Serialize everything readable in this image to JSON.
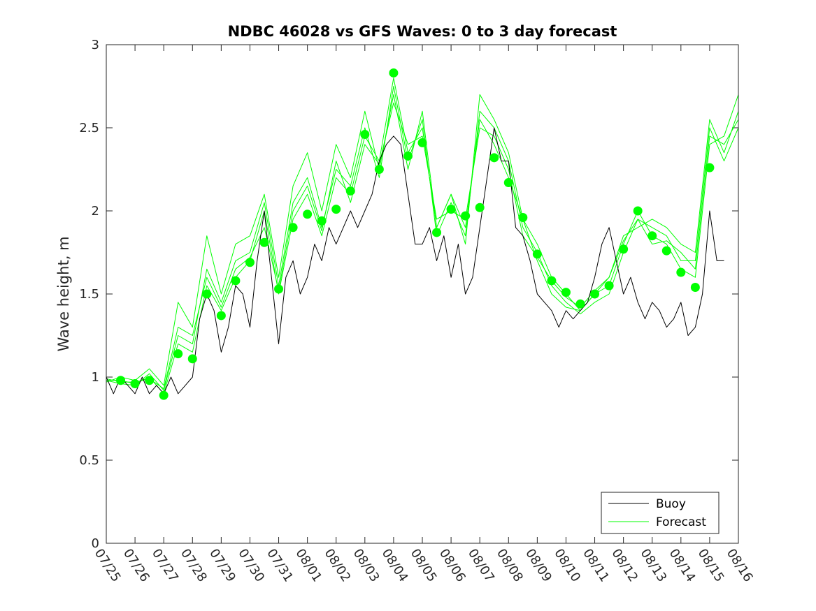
{
  "chart_data": {
    "type": "line",
    "title": "NDBC 46028 vs GFS Waves: 0 to 3 day forecast",
    "xlabel": "",
    "ylabel": "Wave height, m",
    "xlim": [
      0,
      22
    ],
    "ylim": [
      0,
      3
    ],
    "yticks": [
      "0",
      "0.5",
      "1",
      "1.5",
      "2",
      "2.5",
      "3"
    ],
    "ytick_values": [
      0,
      0.5,
      1,
      1.5,
      2,
      2.5,
      3
    ],
    "xticks": [
      "07/25",
      "07/26",
      "07/27",
      "07/28",
      "07/29",
      "07/30",
      "07/31",
      "08/01",
      "08/02",
      "08/03",
      "08/04",
      "08/05",
      "08/06",
      "08/07",
      "08/08",
      "08/09",
      "08/10",
      "08/11",
      "08/12",
      "08/13",
      "08/14",
      "08/15",
      "08/16"
    ],
    "legend": {
      "position": "bottom-right",
      "entries": [
        "Buoy",
        "Forecast"
      ]
    },
    "colors": {
      "buoy": "#000000",
      "forecast": "#00ff00",
      "axis": "#262626"
    },
    "series": [
      {
        "name": "Buoy",
        "x": [
          0.0,
          0.25,
          0.5,
          0.75,
          1.0,
          1.25,
          1.5,
          1.75,
          2.0,
          2.25,
          2.5,
          2.75,
          3.0,
          3.25,
          3.5,
          3.75,
          4.0,
          4.25,
          4.5,
          4.75,
          5.0,
          5.25,
          5.5,
          5.75,
          6.0,
          6.25,
          6.5,
          6.75,
          7.0,
          7.25,
          7.5,
          7.75,
          8.0,
          8.25,
          8.5,
          8.75,
          9.0,
          9.25,
          9.5,
          9.75,
          10.0,
          10.25,
          10.5,
          10.75,
          11.0,
          11.25,
          11.5,
          11.75,
          12.0,
          12.25,
          12.5,
          12.75,
          13.0,
          13.25,
          13.5,
          13.75,
          14.0,
          14.25,
          14.5,
          14.75,
          15.0,
          15.25,
          15.5,
          15.75,
          16.0,
          16.25,
          16.5,
          16.75,
          17.0,
          17.25,
          17.5,
          17.75,
          18.0,
          18.25,
          18.5,
          18.75,
          19.0,
          19.25,
          19.5,
          19.75,
          20.0,
          20.25,
          20.5,
          20.75,
          21.0,
          21.25,
          21.5
        ],
        "values": [
          1.0,
          0.9,
          1.0,
          0.95,
          0.9,
          1.0,
          0.9,
          0.95,
          0.9,
          1.0,
          0.9,
          0.95,
          1.0,
          1.35,
          1.5,
          1.4,
          1.15,
          1.3,
          1.55,
          1.5,
          1.3,
          1.7,
          2.0,
          1.6,
          1.2,
          1.6,
          1.7,
          1.5,
          1.6,
          1.8,
          1.7,
          1.9,
          1.8,
          1.9,
          2.0,
          1.9,
          2.0,
          2.1,
          2.3,
          2.4,
          2.45,
          2.4,
          2.1,
          1.8,
          1.8,
          1.9,
          1.7,
          1.85,
          1.6,
          1.8,
          1.5,
          1.6,
          1.9,
          2.2,
          2.5,
          2.3,
          2.3,
          1.9,
          1.85,
          1.7,
          1.5,
          1.45,
          1.4,
          1.3,
          1.4,
          1.35,
          1.4,
          1.45,
          1.6,
          1.8,
          1.9,
          1.7,
          1.5,
          1.6,
          1.45,
          1.35,
          1.45,
          1.4,
          1.3,
          1.35,
          1.45,
          1.25,
          1.3,
          1.5,
          2.0,
          1.7,
          1.7
        ]
      },
      {
        "name": "Forecast",
        "x": [
          0.5,
          1.0,
          1.5,
          2.0,
          2.5,
          3.0,
          3.5,
          4.0,
          4.5,
          5.0,
          5.5,
          6.0,
          6.5,
          7.0,
          7.5,
          8.0,
          8.5,
          9.0,
          9.5,
          10.0,
          10.5,
          11.0,
          11.5,
          12.0,
          12.5,
          13.0,
          13.5,
          14.0,
          14.5,
          15.0,
          15.5,
          16.0,
          16.5,
          17.0,
          17.5,
          18.0,
          18.5,
          19.0,
          19.5,
          20.0,
          20.5,
          21.0
        ],
        "values": [
          0.98,
          0.96,
          0.98,
          0.89,
          1.14,
          1.11,
          1.5,
          1.37,
          1.58,
          1.69,
          1.81,
          1.53,
          1.9,
          1.98,
          1.94,
          2.01,
          2.12,
          2.46,
          2.25,
          2.83,
          2.33,
          2.41,
          1.87,
          2.01,
          1.97,
          2.02,
          2.32,
          2.17,
          1.96,
          1.74,
          1.58,
          1.51,
          1.44,
          1.5,
          1.55,
          1.77,
          2.0,
          1.85,
          1.76,
          1.63,
          1.54,
          2.26
        ]
      }
    ],
    "forecast_lines": [
      {
        "x": [
          0.0,
          0.5,
          1.0,
          1.5,
          2.0,
          2.5,
          3.0,
          3.5,
          4.0,
          4.5,
          5.0,
          5.5,
          6.0,
          6.5,
          7.0,
          7.5,
          8.0,
          8.5,
          9.0,
          9.5,
          10.0,
          10.5,
          11.0,
          11.5,
          12.0,
          12.5,
          13.0,
          13.5,
          14.0,
          14.5,
          15.0,
          15.5,
          16.0,
          16.5,
          17.0,
          17.5,
          18.0,
          18.5,
          19.0,
          19.5,
          20.0,
          20.5,
          21.0,
          21.5,
          22.0
        ],
        "values": [
          0.98,
          0.98,
          0.96,
          1.0,
          0.9,
          1.2,
          1.15,
          1.55,
          1.4,
          1.6,
          1.7,
          2.0,
          1.5,
          1.95,
          2.1,
          1.85,
          2.2,
          2.1,
          2.45,
          2.3,
          2.8,
          2.35,
          2.5,
          1.9,
          2.1,
          1.9,
          2.55,
          2.4,
          2.2,
          1.95,
          1.8,
          1.6,
          1.5,
          1.4,
          1.5,
          1.55,
          1.8,
          2.0,
          1.85,
          1.8,
          1.65,
          1.6,
          2.4,
          2.45,
          2.7
        ]
      },
      {
        "x": [
          0.0,
          0.5,
          1.0,
          1.5,
          2.0,
          2.5,
          3.0,
          3.5,
          4.0,
          4.5,
          5.0,
          5.5,
          6.0,
          6.5,
          7.0,
          7.5,
          8.0,
          8.5,
          9.0,
          9.5,
          10.0,
          10.5,
          11.0,
          11.5,
          12.0,
          12.5,
          13.0,
          13.5,
          14.0,
          14.5,
          15.0,
          15.5,
          16.0,
          16.5,
          17.0,
          17.5,
          18.0,
          18.5,
          19.0,
          19.5,
          20.0,
          20.5,
          21.0,
          21.5,
          22.0
        ],
        "values": [
          0.98,
          0.96,
          0.95,
          1.02,
          0.92,
          1.25,
          1.2,
          1.65,
          1.45,
          1.7,
          1.75,
          2.05,
          1.55,
          2.05,
          2.2,
          1.9,
          2.25,
          2.15,
          2.5,
          2.2,
          2.75,
          2.3,
          2.55,
          1.85,
          2.05,
          1.85,
          2.6,
          2.5,
          2.3,
          1.9,
          1.75,
          1.55,
          1.45,
          1.38,
          1.45,
          1.5,
          1.75,
          1.95,
          1.9,
          1.85,
          1.7,
          1.7,
          2.5,
          2.3,
          2.5
        ]
      },
      {
        "x": [
          0.0,
          0.5,
          1.0,
          1.5,
          2.0,
          2.5,
          3.0,
          3.5,
          4.0,
          4.5,
          5.0,
          5.5,
          6.0,
          6.5,
          7.0,
          7.5,
          8.0,
          8.5,
          9.0,
          9.5,
          10.0,
          10.5,
          11.0,
          11.5,
          12.0,
          12.5,
          13.0,
          13.5,
          14.0,
          14.5,
          15.0,
          15.5,
          16.0,
          16.5,
          17.0,
          17.5,
          18.0,
          18.5,
          19.0,
          19.5,
          20.0,
          20.5,
          21.0,
          21.5,
          22.0
        ],
        "values": [
          0.97,
          1.0,
          0.98,
          1.05,
          0.95,
          1.45,
          1.3,
          1.85,
          1.5,
          1.8,
          1.85,
          2.1,
          1.6,
          2.15,
          2.35,
          2.0,
          2.4,
          2.2,
          2.6,
          2.25,
          2.7,
          2.25,
          2.6,
          1.9,
          2.1,
          1.8,
          2.7,
          2.55,
          2.35,
          1.95,
          1.7,
          1.5,
          1.42,
          1.4,
          1.5,
          1.6,
          1.85,
          1.9,
          1.95,
          1.9,
          1.8,
          1.75,
          2.55,
          2.35,
          2.6
        ]
      },
      {
        "x": [
          0.0,
          0.5,
          1.0,
          1.5,
          2.0,
          2.5,
          3.0,
          3.5,
          4.0,
          4.5,
          5.0,
          5.5,
          6.0,
          6.5,
          7.0,
          7.5,
          8.0,
          8.5,
          9.0,
          9.5,
          10.0,
          10.5,
          11.0,
          11.5,
          12.0,
          12.5,
          13.0,
          13.5,
          14.0,
          14.5,
          15.0,
          15.5,
          16.0,
          16.5,
          17.0,
          17.5,
          18.0,
          18.5,
          19.0,
          19.5,
          20.0,
          20.5,
          21.0,
          21.5,
          22.0
        ],
        "values": [
          0.99,
          0.97,
          0.97,
          0.99,
          0.93,
          1.3,
          1.25,
          1.6,
          1.42,
          1.65,
          1.72,
          1.9,
          1.52,
          2.0,
          2.15,
          1.88,
          2.3,
          2.05,
          2.4,
          2.28,
          2.65,
          2.4,
          2.45,
          1.95,
          2.0,
          1.95,
          2.5,
          2.45,
          2.25,
          1.85,
          1.72,
          1.58,
          1.48,
          1.42,
          1.52,
          1.6,
          1.82,
          1.95,
          1.8,
          1.82,
          1.75,
          1.65,
          2.45,
          2.4,
          2.55
        ]
      }
    ]
  }
}
